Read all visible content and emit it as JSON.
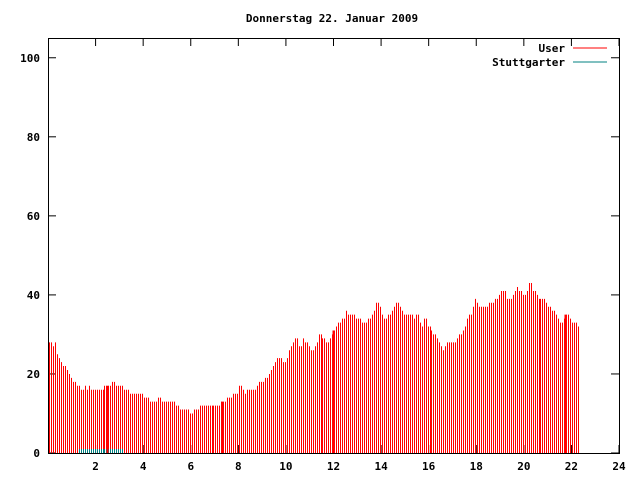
{
  "chart_data": {
    "type": "bar",
    "title": "Donnerstag 22. Januar 2009",
    "xlabel": "",
    "ylabel": "",
    "xlim": [
      0,
      24
    ],
    "ylim": [
      0,
      105
    ],
    "x_ticks": [
      "2",
      "4",
      "6",
      "8",
      "10",
      "12",
      "14",
      "16",
      "18",
      "20",
      "22",
      "24"
    ],
    "y_ticks": [
      "0",
      "20",
      "40",
      "60",
      "80",
      "100"
    ],
    "legend_position": "top-right",
    "grid": false,
    "x_step_hours": 0.0833,
    "series": [
      {
        "name": "User",
        "color": "#ff0000",
        "values": [
          28,
          28,
          27,
          28,
          25,
          24,
          23,
          22,
          22,
          21,
          20,
          19,
          18,
          18,
          17,
          17,
          16,
          16,
          17,
          16,
          17,
          16,
          16,
          16,
          16,
          16,
          16,
          16,
          17,
          17,
          17,
          17,
          18,
          18,
          17,
          17,
          17,
          17,
          16,
          16,
          16,
          15,
          15,
          15,
          15,
          15,
          15,
          15,
          14,
          14,
          14,
          13,
          13,
          13,
          13,
          14,
          14,
          13,
          13,
          13,
          13,
          13,
          13,
          13,
          12,
          12,
          11,
          11,
          11,
          11,
          11,
          10,
          10,
          11,
          11,
          11,
          12,
          12,
          12,
          12,
          12,
          12,
          12,
          12,
          12,
          12,
          12,
          13,
          13,
          13,
          14,
          14,
          14,
          15,
          15,
          15,
          17,
          17,
          16,
          15,
          16,
          16,
          16,
          16,
          16,
          17,
          18,
          18,
          18,
          19,
          19,
          20,
          21,
          22,
          23,
          24,
          24,
          24,
          23,
          23,
          24,
          26,
          27,
          28,
          29,
          29,
          27,
          27,
          29,
          28,
          28,
          27,
          26,
          26,
          27,
          28,
          30,
          30,
          29,
          29,
          28,
          28,
          29,
          30,
          31,
          32,
          33,
          33,
          34,
          34,
          36,
          35,
          35,
          35,
          35,
          34,
          34,
          34,
          33,
          33,
          33,
          34,
          34,
          35,
          36,
          38,
          38,
          37,
          35,
          34,
          34,
          35,
          35,
          36,
          37,
          38,
          38,
          37,
          36,
          35,
          35,
          35,
          35,
          35,
          34,
          35,
          35,
          33,
          32,
          34,
          34,
          32,
          32,
          31,
          30,
          30,
          29,
          28,
          27,
          26,
          27,
          28,
          28,
          28,
          28,
          28,
          29,
          30,
          30,
          31,
          32,
          34,
          35,
          35,
          37,
          39,
          38,
          37,
          37,
          37,
          37,
          37,
          38,
          38,
          38,
          39,
          39,
          40,
          41,
          41,
          41,
          39,
          39,
          39,
          40,
          41,
          42,
          41,
          41,
          40,
          40,
          41,
          43,
          43,
          41,
          41,
          40,
          39,
          39,
          39,
          39,
          38,
          37,
          37,
          36,
          36,
          35,
          34,
          33,
          33,
          34,
          35,
          35,
          34,
          33,
          33,
          33,
          32
        ]
      },
      {
        "name": "Stuttgarter",
        "color": "#008080",
        "values": [
          0,
          0,
          0,
          0,
          0,
          0,
          0,
          0,
          0,
          0,
          0,
          0,
          0,
          0,
          0,
          1,
          1,
          1,
          1,
          1,
          1,
          1,
          1,
          1,
          1,
          1,
          1,
          1,
          1,
          1,
          1,
          1,
          1,
          1,
          1,
          1,
          1,
          1,
          0,
          0,
          0,
          0,
          0,
          0,
          0,
          0,
          0,
          0,
          0,
          0,
          0,
          0,
          0,
          0,
          0,
          0,
          0,
          0,
          0,
          0,
          0,
          0,
          0,
          0,
          0,
          0,
          0,
          0,
          0,
          0,
          0,
          0,
          0,
          0,
          0,
          0,
          0,
          0,
          0,
          0,
          0,
          0,
          0,
          0,
          0,
          0,
          0,
          0,
          0,
          0,
          0,
          0,
          0,
          0,
          0,
          0,
          0,
          0,
          0,
          0,
          0,
          0,
          0,
          0,
          0,
          0,
          0,
          0,
          0,
          0,
          0,
          0,
          0,
          0,
          0,
          0,
          0,
          0,
          0,
          0,
          0,
          0,
          0,
          0,
          0,
          0,
          0,
          0,
          0,
          0,
          0,
          0,
          0,
          0,
          0,
          0,
          0,
          0,
          0,
          0,
          0,
          0,
          0,
          0,
          0,
          0,
          0,
          0,
          0,
          0,
          0,
          0,
          0,
          0,
          0,
          0,
          0,
          0,
          0,
          0,
          0,
          0,
          0,
          0,
          0,
          0,
          0,
          0,
          0,
          0,
          0,
          0,
          0,
          0,
          0,
          0,
          0,
          0,
          0,
          0,
          0,
          0,
          0,
          0,
          0,
          0,
          0,
          0,
          0,
          0,
          0,
          0,
          0,
          0,
          0,
          0,
          0,
          0,
          0,
          0,
          0,
          0,
          0,
          0,
          0,
          0,
          0,
          0,
          0,
          0,
          0,
          0,
          0,
          0,
          0,
          0,
          0,
          0,
          0,
          0,
          0,
          0,
          0,
          0,
          0,
          0,
          0,
          0,
          0,
          0,
          0,
          0,
          0,
          0,
          0,
          0,
          0,
          0,
          0,
          0,
          0,
          0,
          0,
          0,
          0,
          0,
          0,
          0,
          0,
          0,
          0,
          0,
          0,
          0,
          0,
          0,
          0,
          0,
          0,
          0,
          0,
          0,
          0,
          0,
          0,
          0,
          0,
          0,
          0,
          0,
          0,
          0,
          0,
          0,
          0,
          0,
          0,
          0
        ]
      }
    ],
    "highlight_x": [
      2.5,
      7.33,
      12.0,
      21.75
    ]
  }
}
